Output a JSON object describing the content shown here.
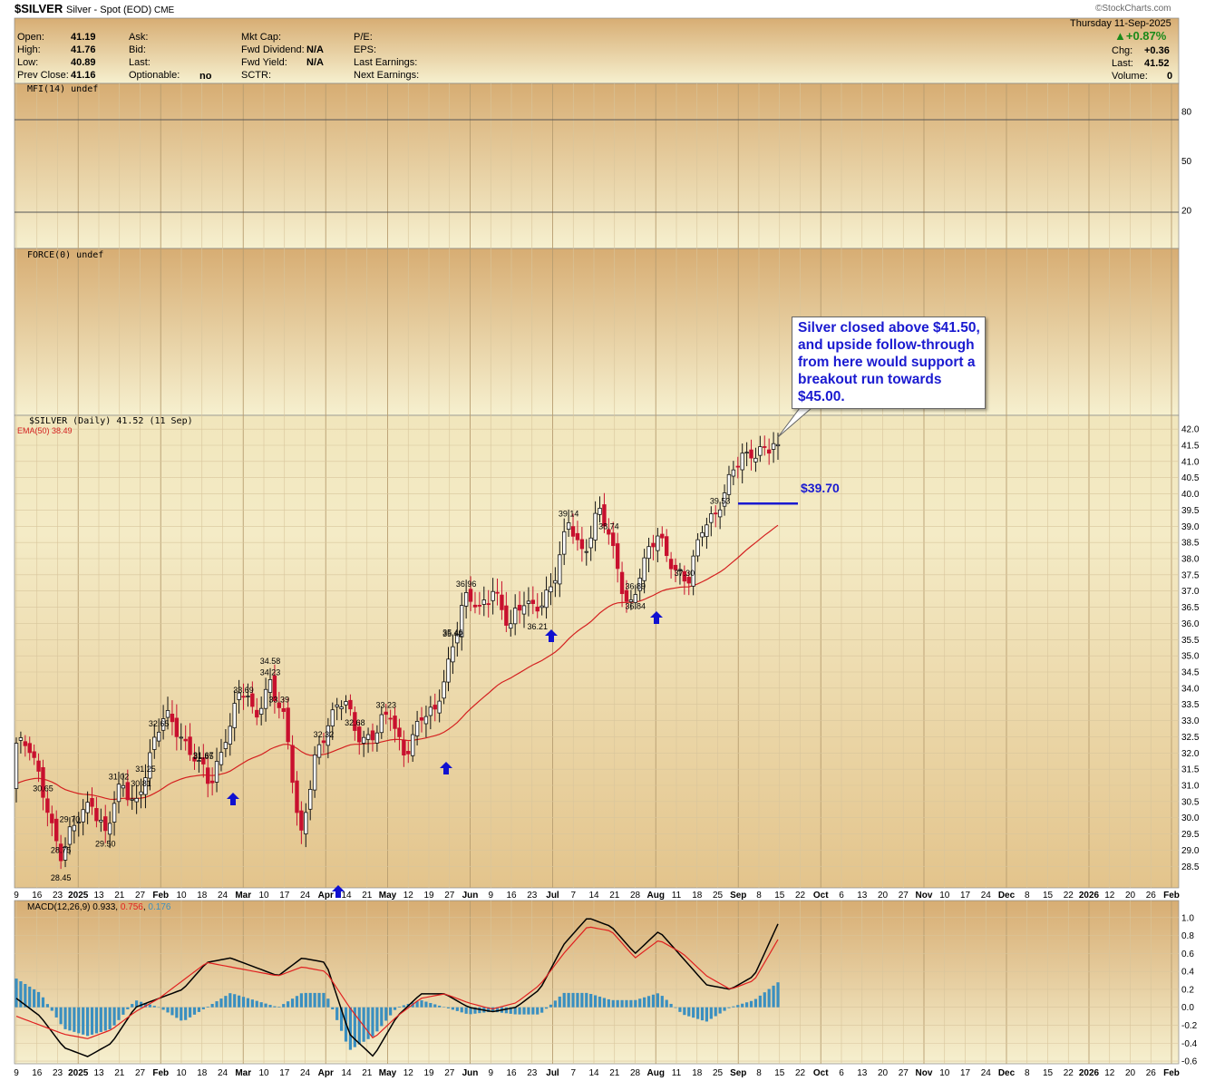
{
  "header": {
    "symbol": "$SILVER",
    "name": "Silver - Spot (EOD)",
    "exchange": "CME",
    "watermark": "©StockCharts.com",
    "date": "Thursday  11-Sep-2025",
    "pct_change": "▲+0.87%",
    "chg_label": "Chg:",
    "chg_value": "+0.36",
    "last_label": "Last:",
    "last_value": "41.52",
    "volume_label": "Volume:",
    "volume_value": "0",
    "open_label": "Open:",
    "open_value": "41.19",
    "high_label": "High:",
    "high_value": "41.76",
    "low_label": "Low:",
    "low_value": "40.89",
    "prevclose_label": "Prev Close:",
    "prevclose_value": "41.16",
    "ask_label": "Ask:",
    "bid_label": "Bid:",
    "last2_label": "Last:",
    "optionable_label": "Optionable:",
    "optionable_value": "no",
    "mktcap_label": "Mkt Cap:",
    "fwddiv_label": "Fwd Dividend:",
    "fwddiv_value": "N/A",
    "fwdyield_label": "Fwd Yield:",
    "fwdyield_value": "N/A",
    "sctr_label": "SCTR:",
    "pe_label": "P/E:",
    "eps_label": "EPS:",
    "lastearn_label": "Last Earnings:",
    "nextearn_label": "Next Earnings:"
  },
  "annotation": {
    "callout_text": "Silver closed above $41.50, and upside follow-through from here would support a breakout run towards $45.00.",
    "level_label": "$39.70"
  },
  "colors": {
    "up": "#111111",
    "down": "#c8102e",
    "ema": "#d42020",
    "macd": "#000000",
    "signal": "#e02020",
    "hist": "#3a8fc0",
    "arrow": "#1010d0",
    "callout_text": "#1a1ad0",
    "bg_top": "#d7ad73",
    "bg_bottom": "#f6f0cf"
  },
  "chart_data": [
    {
      "type": "line",
      "panel": "MFI",
      "title": "MFI(14) undef",
      "ylim": [
        0,
        100
      ],
      "y_ticks": [
        20,
        50,
        80
      ],
      "series": []
    },
    {
      "type": "line",
      "panel": "Force Index",
      "title": "FORCE(0) undef",
      "series": []
    },
    {
      "type": "candlestick",
      "panel": "Price",
      "title": "$SILVER (Daily) 41.52 (11 Sep)",
      "legend": "EMA(50) 38.49",
      "ylim": [
        28.2,
        42.2
      ],
      "y_ticks": [
        28.5,
        29.0,
        29.5,
        30.0,
        30.5,
        31.0,
        31.5,
        32.0,
        32.5,
        33.0,
        33.5,
        34.0,
        34.5,
        35.0,
        35.5,
        36.0,
        36.5,
        37.0,
        37.5,
        38.0,
        38.5,
        39.0,
        39.5,
        40.0,
        40.5,
        41.0,
        41.5,
        42.0
      ],
      "x_tick_labels": [
        "9",
        "16",
        "23",
        "2025",
        "13",
        "21",
        "27",
        "Feb",
        "10",
        "18",
        "24",
        "Mar",
        "10",
        "17",
        "24",
        "Apr",
        "14",
        "21",
        "May",
        "12",
        "19",
        "27",
        "Jun",
        "9",
        "16",
        "23",
        "Jul",
        "7",
        "14",
        "21",
        "28",
        "Aug",
        "11",
        "18",
        "25",
        "Sep",
        "8",
        "15",
        "22",
        "Oct",
        "6",
        "13",
        "20",
        "27",
        "Nov",
        "10",
        "17",
        "24",
        "Dec",
        "8",
        "15",
        "22",
        "2026",
        "12",
        "20",
        "26",
        "Feb"
      ],
      "anchors": [
        [
          32.3,
          30.9
        ],
        [
          32.0,
          32.3
        ],
        [
          30.5,
          29.9
        ],
        [
          28.75,
          28.8
        ],
        [
          29.8,
          29.5
        ],
        [
          30.6,
          30.65
        ],
        [
          29.5,
          29.7
        ],
        [
          31.0,
          31.02
        ],
        [
          30.5,
          30.6
        ],
        [
          32.0,
          32.65
        ],
        [
          33.2,
          33.39
        ],
        [
          32.6,
          32.65
        ],
        [
          31.8,
          31.5
        ],
        [
          30.9,
          30.81
        ],
        [
          32.5,
          32.68
        ],
        [
          34.0,
          34.23
        ],
        [
          33.0,
          32.7
        ],
        [
          34.3,
          34.58
        ],
        [
          33.0,
          31.9
        ],
        [
          29.2,
          28.45
        ],
        [
          32.0,
          32.3
        ],
        [
          33.0,
          33.0
        ],
        [
          33.6,
          33.69
        ],
        [
          32.5,
          32.2
        ],
        [
          32.5,
          32.5
        ],
        [
          33.2,
          33.23
        ],
        [
          32.0,
          31.65
        ],
        [
          33.0,
          33.0
        ],
        [
          33.2,
          33.0
        ],
        [
          35.0,
          35.0
        ],
        [
          36.8,
          36.89
        ],
        [
          36.4,
          36.0
        ],
        [
          37.2,
          37.3
        ],
        [
          35.8,
          35.6
        ],
        [
          36.6,
          36.84
        ],
        [
          36.6,
          36.4
        ],
        [
          37.2,
          37.2
        ],
        [
          39.14,
          38.9
        ],
        [
          38.2,
          38.0
        ],
        [
          39.53,
          39.3
        ],
        [
          38.2,
          38.0
        ],
        [
          36.5,
          36.21
        ],
        [
          37.8,
          37.8
        ],
        [
          38.74,
          38.5
        ],
        [
          37.8,
          37.9
        ],
        [
          37.2,
          36.96
        ],
        [
          39.0,
          38.9
        ],
        [
          39.6,
          39.6
        ],
        [
          40.7,
          40.7
        ],
        [
          41.2,
          41.1
        ],
        [
          41.5,
          41.3
        ],
        [
          41.52,
          41.52
        ]
      ],
      "price_labels": [
        {
          "text": "32.32",
          "value": 32.32
        },
        {
          "text": "28.75",
          "value": 28.75
        },
        {
          "text": "30.65",
          "value": 30.65
        },
        {
          "text": "29.50",
          "value": 29.5
        },
        {
          "text": "31.02",
          "value": 31.02
        },
        {
          "text": "29.70",
          "value": 29.7
        },
        {
          "text": "32.65",
          "value": 32.65
        },
        {
          "text": "33.39",
          "value": 33.39
        },
        {
          "text": "31.25",
          "value": 31.25
        },
        {
          "text": "30.81",
          "value": 30.81
        },
        {
          "text": "34.23",
          "value": 34.23
        },
        {
          "text": "32.68",
          "value": 32.68
        },
        {
          "text": "34.58",
          "value": 34.58
        },
        {
          "text": "28.45",
          "value": 28.45
        },
        {
          "text": "33.69",
          "value": 33.69
        },
        {
          "text": "31.67",
          "value": 31.67
        },
        {
          "text": "33.23",
          "value": 33.23
        },
        {
          "text": "31.65",
          "value": 31.65
        },
        {
          "text": "36.89",
          "value": 36.89
        },
        {
          "text": "35.46",
          "value": 35.46
        },
        {
          "text": "37.30",
          "value": 37.3
        },
        {
          "text": "36.84",
          "value": 36.84
        },
        {
          "text": "35.42",
          "value": 35.42
        },
        {
          "text": "39.14",
          "value": 39.14
        },
        {
          "text": "39.53",
          "value": 39.53
        },
        {
          "text": "36.21",
          "value": 36.21
        },
        {
          "text": "38.74",
          "value": 38.74
        },
        {
          "text": "36.96",
          "value": 36.96
        }
      ],
      "support_level": 39.7
    },
    {
      "type": "line",
      "panel": "MACD",
      "title": "MACD(12,26,9) 0.933, 0.756, 0.176",
      "legend_values": [
        "0.933",
        "0.756",
        "0.176"
      ],
      "ylim": [
        -0.62,
        1.12
      ],
      "y_ticks": [
        -0.6,
        -0.4,
        -0.2,
        0.0,
        0.2,
        0.4,
        0.6,
        0.8,
        1.0
      ],
      "macd_anchors": [
        0.1,
        -0.1,
        -0.45,
        -0.55,
        -0.4,
        0.0,
        0.1,
        0.2,
        0.5,
        0.55,
        0.45,
        0.35,
        0.55,
        0.5,
        -0.3,
        -0.55,
        -0.1,
        0.15,
        0.15,
        0.0,
        -0.05,
        0.0,
        0.2,
        0.7,
        1.0,
        0.9,
        0.6,
        0.85,
        0.55,
        0.25,
        0.2,
        0.35,
        0.93
      ],
      "signal_anchors": [
        -0.1,
        -0.2,
        -0.3,
        -0.35,
        -0.25,
        -0.05,
        0.1,
        0.3,
        0.5,
        0.45,
        0.4,
        0.35,
        0.45,
        0.4,
        0.0,
        -0.35,
        -0.1,
        0.1,
        0.15,
        0.05,
        -0.02,
        0.05,
        0.25,
        0.6,
        0.9,
        0.85,
        0.55,
        0.75,
        0.6,
        0.35,
        0.2,
        0.3,
        0.756
      ]
    }
  ]
}
